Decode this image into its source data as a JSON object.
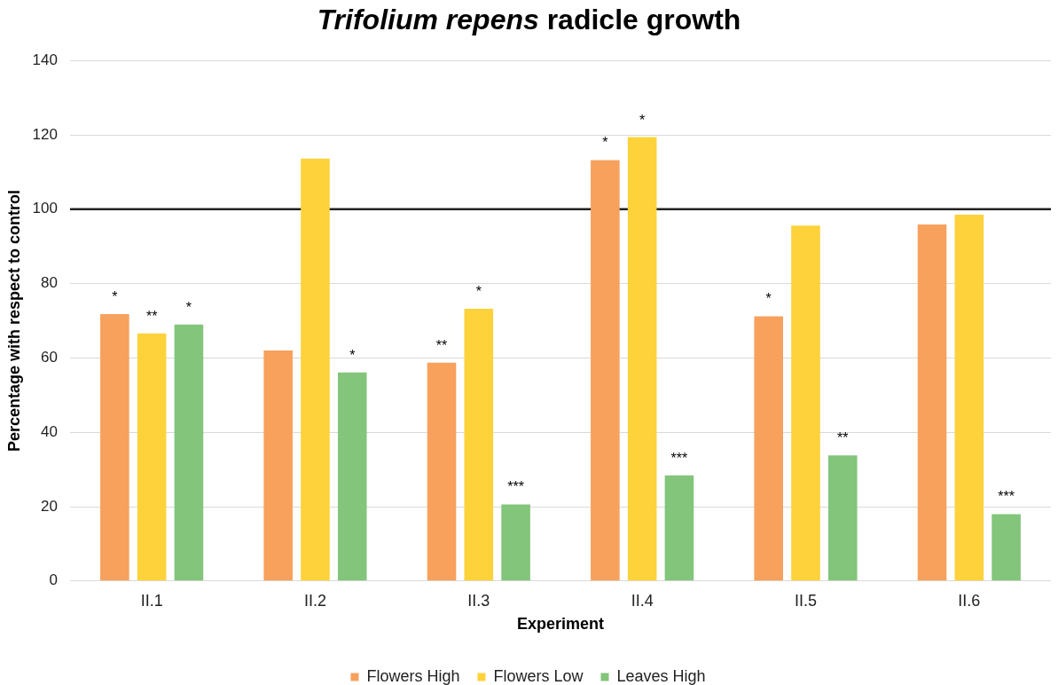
{
  "chart_data": {
    "type": "bar",
    "title": "Trifolium repens radicle growth",
    "xlabel": "Experiment",
    "ylabel": "Percentage with respect to control",
    "categories": [
      "II.1",
      "II.2",
      "II.3",
      "II.4",
      "II.5",
      "II.6"
    ],
    "series": [
      {
        "name": "Flowers High",
        "color": "#f7a15d",
        "values": [
          71.8,
          62.0,
          58.7,
          113.2,
          71.2,
          95.9
        ],
        "value_labels": [
          "*",
          null,
          "**",
          "*",
          "*",
          null
        ]
      },
      {
        "name": "Flowers Low",
        "color": "#fdd23a",
        "values": [
          66.6,
          113.6,
          73.2,
          119.4,
          95.6,
          98.5
        ],
        "value_labels": [
          "**",
          null,
          "*",
          "*",
          null,
          null
        ]
      },
      {
        "name": "Leaves High",
        "color": "#82c57b",
        "values": [
          69.0,
          56.1,
          20.6,
          28.4,
          33.8,
          18.0
        ],
        "value_labels": [
          "*",
          "*",
          "***",
          "***",
          "**",
          "***"
        ]
      }
    ],
    "ylim": [
      0,
      140
    ],
    "yticks": [
      0,
      20,
      40,
      60,
      80,
      100,
      120,
      140
    ],
    "grid": "y",
    "legend": "bottom",
    "ref_lines": [
      {
        "axis": "y",
        "value": 100,
        "color": "#222222"
      }
    ]
  }
}
